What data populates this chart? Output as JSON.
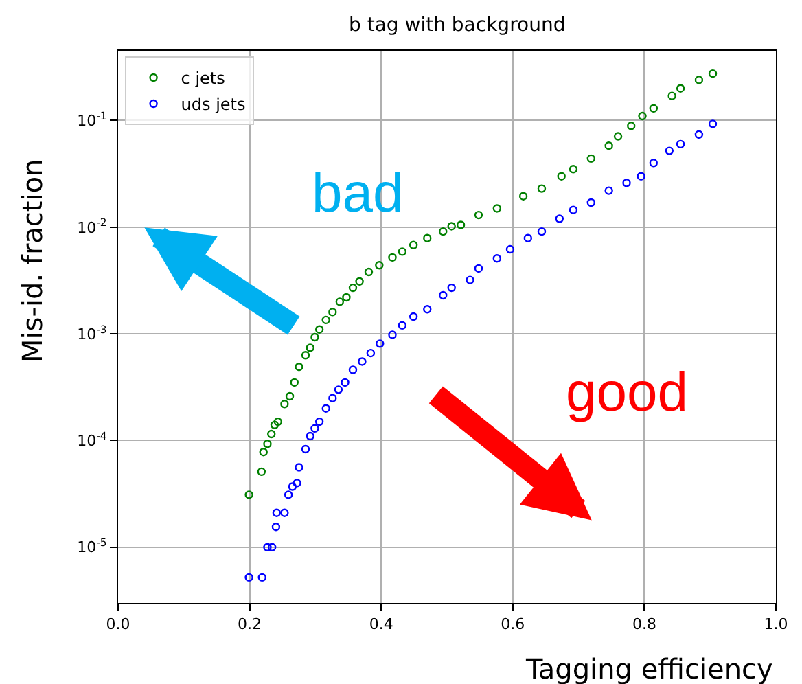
{
  "chart_data": {
    "type": "scatter",
    "title": "b tag with background",
    "xlabel": "Tagging efficiency",
    "ylabel": "Mis-id. fraction",
    "log": "y",
    "grid": true,
    "legend": "top left",
    "marker": "circle",
    "xlim": [
      0.0,
      1.0
    ],
    "xticks": [
      {
        "value": 0.0,
        "label": "0.0"
      },
      {
        "value": 0.2,
        "label": "0.2"
      },
      {
        "value": 0.4,
        "label": "0.4"
      },
      {
        "value": 0.6,
        "label": "0.6"
      },
      {
        "value": 0.8,
        "label": "0.8"
      },
      {
        "value": 1.0,
        "label": "1.0"
      }
    ],
    "ylim": [
      3e-06,
      0.45
    ],
    "yticks": [
      {
        "value": 1e-05,
        "label": "10$^{-5}$"
      },
      {
        "value": 0.0001,
        "label": "10$^{-4}$"
      },
      {
        "value": 0.001,
        "label": "10$^{-3}$"
      },
      {
        "value": 0.01,
        "label": "10$^{-2}$"
      },
      {
        "value": 0.1,
        "label": "10$^{-1}$"
      }
    ],
    "annotations": [
      "bad",
      "good"
    ],
    "series": [
      {
        "name": "c jets",
        "color": "#008000",
        "x": [
          0.199,
          0.218,
          0.221,
          0.227,
          0.233,
          0.238,
          0.243,
          0.253,
          0.261,
          0.268,
          0.275,
          0.285,
          0.292,
          0.299,
          0.306,
          0.316,
          0.326,
          0.337,
          0.347,
          0.357,
          0.367,
          0.381,
          0.397,
          0.417,
          0.432,
          0.449,
          0.47,
          0.494,
          0.507,
          0.521,
          0.548,
          0.576,
          0.616,
          0.644,
          0.674,
          0.692,
          0.719,
          0.746,
          0.76,
          0.78,
          0.797,
          0.814,
          0.842,
          0.855,
          0.883,
          0.904
        ],
        "values": [
          3.1e-05,
          5.1e-05,
          7.8e-05,
          9.3e-05,
          0.000115,
          0.00014,
          0.00015,
          0.00022,
          0.00026,
          0.00035,
          0.00049,
          0.00063,
          0.00074,
          0.00093,
          0.0011,
          0.00135,
          0.0016,
          0.002,
          0.0022,
          0.0027,
          0.0031,
          0.0038,
          0.0044,
          0.0052,
          0.0059,
          0.0068,
          0.0079,
          0.0091,
          0.0102,
          0.0105,
          0.013,
          0.015,
          0.0195,
          0.023,
          0.03,
          0.035,
          0.044,
          0.058,
          0.071,
          0.089,
          0.11,
          0.13,
          0.17,
          0.2,
          0.24,
          0.275
        ]
      },
      {
        "name": "uds jets",
        "color": "#0000ff",
        "x": [
          0.199,
          0.219,
          0.227,
          0.234,
          0.24,
          0.241,
          0.253,
          0.259,
          0.265,
          0.272,
          0.275,
          0.285,
          0.292,
          0.299,
          0.306,
          0.316,
          0.326,
          0.335,
          0.345,
          0.357,
          0.371,
          0.384,
          0.398,
          0.417,
          0.432,
          0.449,
          0.47,
          0.494,
          0.507,
          0.535,
          0.548,
          0.576,
          0.596,
          0.623,
          0.644,
          0.671,
          0.692,
          0.719,
          0.746,
          0.773,
          0.795,
          0.814,
          0.838,
          0.855,
          0.883,
          0.904
        ],
        "values": [
          5.2e-06,
          5.2e-06,
          1e-05,
          1e-05,
          1.55e-05,
          2.1e-05,
          2.1e-05,
          3.1e-05,
          3.7e-05,
          4e-05,
          5.6e-05,
          8.3e-05,
          0.00011,
          0.00013,
          0.00015,
          0.0002,
          0.00025,
          0.0003,
          0.00035,
          0.00046,
          0.00055,
          0.00066,
          0.00081,
          0.00098,
          0.0012,
          0.00145,
          0.0017,
          0.0023,
          0.0027,
          0.0032,
          0.0041,
          0.0051,
          0.0062,
          0.0079,
          0.0091,
          0.012,
          0.0145,
          0.017,
          0.022,
          0.026,
          0.03,
          0.04,
          0.052,
          0.06,
          0.074,
          0.093
        ]
      }
    ]
  }
}
